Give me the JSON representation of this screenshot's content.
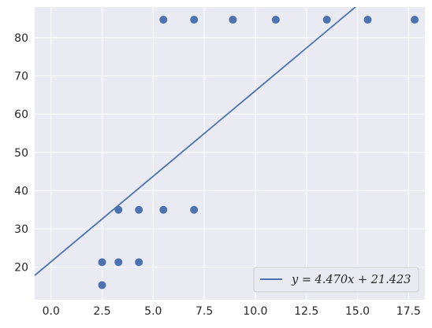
{
  "chart_data": {
    "type": "scatter",
    "xlim": [
      -0.8,
      18.3
    ],
    "ylim": [
      11.5,
      88
    ],
    "x_ticks": [
      0.0,
      2.5,
      5.0,
      7.5,
      10.0,
      12.5,
      15.0,
      17.5
    ],
    "x_tick_labels": [
      "0.0",
      "2.5",
      "5.0",
      "7.5",
      "10.0",
      "12.5",
      "15.0",
      "17.5"
    ],
    "y_ticks": [
      20,
      30,
      40,
      50,
      60,
      70,
      80
    ],
    "y_tick_labels": [
      "20",
      "30",
      "40",
      "50",
      "60",
      "70",
      "80"
    ],
    "grid": true,
    "background": "#eaeaf2",
    "marker_color": "#4c72b0",
    "points": [
      {
        "x": 2.5,
        "y": 15.3
      },
      {
        "x": 2.5,
        "y": 21.3
      },
      {
        "x": 3.3,
        "y": 21.3
      },
      {
        "x": 4.3,
        "y": 21.3
      },
      {
        "x": 3.3,
        "y": 35.0
      },
      {
        "x": 4.3,
        "y": 35.0
      },
      {
        "x": 5.5,
        "y": 35.0
      },
      {
        "x": 7.0,
        "y": 35.0
      },
      {
        "x": 5.5,
        "y": 84.7
      },
      {
        "x": 7.0,
        "y": 84.7
      },
      {
        "x": 8.9,
        "y": 84.7
      },
      {
        "x": 11.0,
        "y": 84.7
      },
      {
        "x": 13.5,
        "y": 84.7
      },
      {
        "x": 15.5,
        "y": 84.7
      },
      {
        "x": 17.8,
        "y": 84.7
      }
    ],
    "fit_line": {
      "slope": 4.47,
      "intercept": 21.423,
      "color": "#4c72b0"
    },
    "legend": {
      "placement": "lower-right",
      "label": "y = 4.470x + 21.423"
    }
  }
}
